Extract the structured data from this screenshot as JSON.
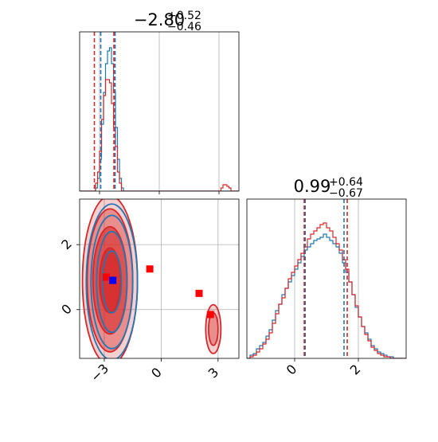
{
  "chart_data": [
    {
      "type": "histogram",
      "panel": "top-left",
      "title": {
        "value": "−2.80",
        "plus": "+0.52",
        "minus": "−0.46"
      },
      "xlim": [
        -4.0,
        4.0
      ],
      "grid": true,
      "show_xticklabels": false,
      "bin_edges": [
        -4.0,
        -3.9,
        -3.8,
        -3.7,
        -3.6,
        -3.5,
        -3.4,
        -3.3,
        -3.2,
        -3.1,
        -3.0,
        -2.9,
        -2.8,
        -2.7,
        -2.6,
        -2.5,
        -2.4,
        -2.3,
        -2.2,
        -2.1,
        -2.0,
        -1.9,
        -1.8,
        -1.7,
        -1.6,
        -1.5,
        -1.4,
        -1.3,
        -1.2,
        -1.1,
        -1.0,
        -0.9,
        -0.8,
        -0.7,
        -0.6,
        -0.5,
        -0.4,
        -0.3,
        -0.2,
        -0.1,
        0.0,
        0.1,
        0.2,
        0.3,
        0.4,
        0.5,
        0.6,
        0.7,
        0.8,
        0.9,
        1.0,
        1.1,
        1.2,
        1.3,
        1.4,
        1.5,
        1.6,
        1.7,
        1.8,
        1.9,
        2.0,
        2.1,
        2.2,
        2.3,
        2.4,
        2.5,
        2.6,
        2.7,
        2.8,
        2.9,
        3.0,
        3.1,
        3.2,
        3.3,
        3.4,
        3.5,
        3.6,
        3.7,
        3.8,
        3.9,
        4.0
      ],
      "series": [
        {
          "color": "#1f77b4",
          "counts": [
            0,
            0,
            0,
            0,
            0,
            0,
            0,
            0,
            2,
            8,
            20,
            42,
            62,
            80,
            88,
            90,
            80,
            62,
            40,
            20,
            8,
            2,
            0,
            0,
            0,
            0,
            0,
            0,
            0,
            0,
            0,
            0,
            0,
            0,
            0,
            0,
            0,
            0,
            0,
            0,
            0,
            0,
            0,
            0,
            0,
            0,
            0,
            0,
            0,
            0,
            0,
            0,
            0,
            0,
            0,
            0,
            0,
            0,
            0,
            0,
            0,
            0,
            0,
            0,
            0,
            0,
            0,
            0,
            0,
            0,
            0,
            0,
            0,
            0,
            0,
            0,
            0,
            0,
            0,
            0
          ],
          "quantile_lines": [
            -2.94,
            -2.22
          ]
        },
        {
          "color": "#d62728",
          "counts": [
            0,
            0,
            0,
            0,
            0,
            0,
            0,
            0,
            5,
            12,
            25,
            45,
            60,
            70,
            70,
            68,
            55,
            40,
            28,
            12,
            5,
            0,
            0,
            0,
            0,
            0,
            0,
            0,
            0,
            0,
            0,
            0,
            0,
            0,
            0,
            0,
            0,
            0,
            0,
            0,
            0,
            0,
            0,
            0,
            0,
            0,
            0,
            0,
            0,
            0,
            0,
            0,
            0,
            0,
            0,
            0,
            0,
            0,
            0,
            0,
            0,
            0,
            0,
            0,
            0,
            0,
            0,
            0,
            0,
            0,
            0,
            2,
            4,
            4,
            3,
            2,
            0,
            0,
            0,
            0
          ],
          "quantile_lines": [
            -3.26,
            -2.28
          ]
        }
      ],
      "ymax": 100
    },
    {
      "type": "histogram",
      "panel": "bottom-right",
      "title": {
        "value": "0.99",
        "plus": "+0.64",
        "minus": "−0.67"
      },
      "xlim": [
        -1.5,
        3.5
      ],
      "grid": true,
      "xticks": [
        {
          "value": 0,
          "label": "0"
        },
        {
          "value": 2,
          "label": "2"
        }
      ],
      "bin_edges": [
        -1.5,
        -1.4,
        -1.3,
        -1.2,
        -1.1,
        -1.0,
        -0.9,
        -0.8,
        -0.7,
        -0.6,
        -0.5,
        -0.4,
        -0.3,
        -0.2,
        -0.1,
        0.0,
        0.1,
        0.2,
        0.3,
        0.4,
        0.5,
        0.6,
        0.7,
        0.8,
        0.9,
        1.0,
        1.1,
        1.2,
        1.3,
        1.4,
        1.5,
        1.6,
        1.7,
        1.8,
        1.9,
        2.0,
        2.1,
        2.2,
        2.3,
        2.4,
        2.5,
        2.6,
        2.7,
        2.8,
        2.9,
        3.0,
        3.1,
        3.2,
        3.3,
        3.4,
        3.5
      ],
      "series": [
        {
          "color": "#1f77b4",
          "counts": [
            0,
            2,
            3,
            6,
            8,
            10,
            14,
            18,
            24,
            30,
            34,
            40,
            44,
            48,
            52,
            56,
            60,
            64,
            68,
            70,
            72,
            74,
            75,
            76,
            78,
            76,
            74,
            72,
            70,
            66,
            60,
            54,
            48,
            40,
            32,
            26,
            20,
            16,
            12,
            8,
            6,
            4,
            3,
            2,
            1,
            1,
            0,
            0,
            0,
            0
          ],
          "quantile_lines": [
            0.33,
            1.55
          ]
        },
        {
          "color": "#d62728",
          "counts": [
            0,
            1,
            2,
            4,
            6,
            9,
            12,
            16,
            22,
            28,
            34,
            38,
            44,
            50,
            54,
            58,
            62,
            66,
            70,
            75,
            78,
            80,
            82,
            84,
            85,
            82,
            80,
            76,
            72,
            68,
            62,
            56,
            48,
            40,
            33,
            26,
            20,
            15,
            11,
            7,
            5,
            3,
            2,
            1,
            1,
            0,
            0,
            0,
            0,
            0
          ],
          "quantile_lines": [
            0.3,
            1.65
          ]
        }
      ],
      "ymax": 100
    },
    {
      "type": "contour",
      "panel": "bottom-left",
      "xlim": [
        -4.3,
        4.1
      ],
      "ylim": [
        -1.5,
        3.4
      ],
      "grid": true,
      "xticks": [
        {
          "value": -3,
          "label": "−3"
        },
        {
          "value": 0,
          "label": "0"
        },
        {
          "value": 3,
          "label": "3"
        }
      ],
      "yticks": [
        {
          "value": 0,
          "label": "0"
        },
        {
          "value": 2,
          "label": "2"
        }
      ],
      "series": [
        {
          "color": "#d62728",
          "fill": true,
          "modes": [
            {
              "cx": -2.7,
              "cy": 0.9,
              "levels": [
                [
                  0.55,
                  1.0
                ],
                [
                  0.9,
                  1.65
                ],
                [
                  1.2,
                  2.2
                ],
                [
                  1.45,
                  2.6
                ]
              ]
            },
            {
              "cx": 2.75,
              "cy": -0.6,
              "levels": [
                [
                  0.25,
                  0.5
                ],
                [
                  0.4,
                  0.75
                ]
              ]
            }
          ]
        },
        {
          "color": "#1f77b4",
          "fill": false,
          "modes": [
            {
              "cx": -2.6,
              "cy": 0.85,
              "levels": [
                [
                  0.5,
                  0.95
                ],
                [
                  0.8,
                  1.55
                ],
                [
                  1.1,
                  2.05
                ],
                [
                  1.35,
                  2.4
                ]
              ]
            }
          ]
        }
      ],
      "markers": [
        {
          "x": -2.9,
          "y": 1.0,
          "color": "#ff0000"
        },
        {
          "x": -0.6,
          "y": 1.25,
          "color": "#ff0000"
        },
        {
          "x": 2.0,
          "y": 0.5,
          "color": "#ff0000"
        },
        {
          "x": 2.6,
          "y": -0.15,
          "color": "#ff0000"
        },
        {
          "x": -2.55,
          "y": 0.9,
          "color": "#0000ff"
        }
      ]
    }
  ]
}
